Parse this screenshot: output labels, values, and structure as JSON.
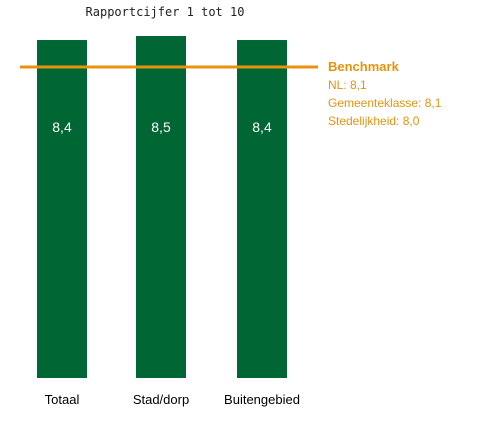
{
  "chart_data": {
    "type": "bar",
    "title": "Rapportcijfer 1 tot 10",
    "categories": [
      "Totaal",
      "Stad/dorp",
      "Buitengebied"
    ],
    "values": [
      8.4,
      8.5,
      8.4
    ],
    "value_labels": [
      "8,4",
      "8,5",
      "8,4"
    ],
    "ylim": [
      0,
      8.5
    ],
    "grid": false,
    "benchmark": {
      "value": 8.1,
      "label": "Benchmark",
      "lines": [
        "NL: 8,1",
        "Gemeenteklasse: 8,1",
        "Stedelijkheid:  8,0"
      ]
    }
  },
  "colors": {
    "bar": "#006633",
    "bar_label": "#ffffff",
    "benchmark": "#e8920e",
    "axis_text": "#000000"
  }
}
